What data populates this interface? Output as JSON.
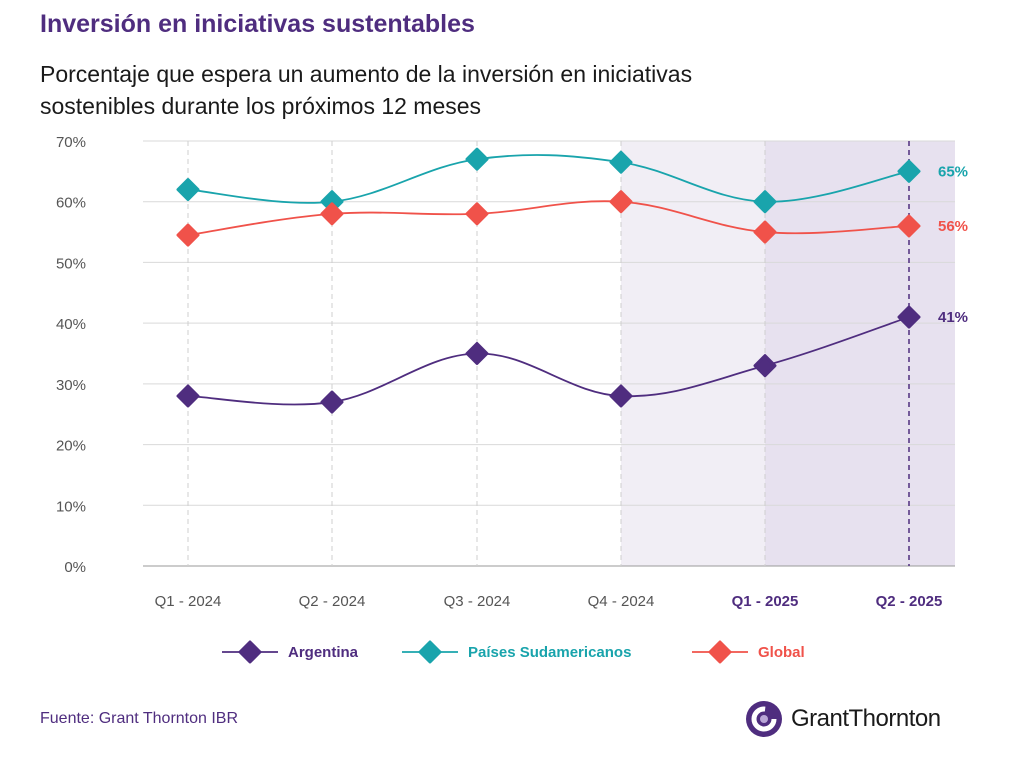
{
  "header": {
    "title": "Inversión en iniciativas sustentables",
    "subtitle": "Porcentaje que espera un aumento de la inversión en iniciativas sostenibles durante los próximos 12 meses"
  },
  "footer": {
    "source": "Fuente: Grant Thornton IBR",
    "logo_text": "GrantThornton"
  },
  "colors": {
    "brand": "#4f2d7f",
    "argentina": "#4f2d7f",
    "sudamerica": "#19a4ac",
    "global": "#f0524a",
    "shade": "#f1eef5"
  },
  "chart_data": {
    "type": "line",
    "categories": [
      "Q1 - 2024",
      "Q2 - 2024",
      "Q3 - 2024",
      "Q4 - 2024",
      "Q1 - 2025",
      "Q2 - 2025"
    ],
    "highlighted_categories": [
      "Q1 - 2025",
      "Q2 - 2025"
    ],
    "shaded_from_category": "Q4 - 2024",
    "ylim": [
      0,
      70
    ],
    "yticks": [
      0,
      10,
      20,
      30,
      40,
      50,
      60,
      70
    ],
    "ytick_labels": [
      "0%",
      "10%",
      "20%",
      "30%",
      "40%",
      "50%",
      "60%",
      "70%"
    ],
    "grid": true,
    "legend_position": "bottom",
    "series": [
      {
        "name": "Argentina",
        "key": "argentina",
        "values": [
          28,
          27,
          35,
          28,
          33,
          41
        ],
        "end_label": "41%"
      },
      {
        "name": "Países Sudamericanos",
        "key": "sudamerica",
        "values": [
          62,
          60,
          67,
          66.5,
          60,
          65
        ],
        "end_label": "65%"
      },
      {
        "name": "Global",
        "key": "global",
        "values": [
          54.5,
          58,
          58,
          60,
          55,
          56
        ],
        "end_label": "56%"
      }
    ]
  }
}
